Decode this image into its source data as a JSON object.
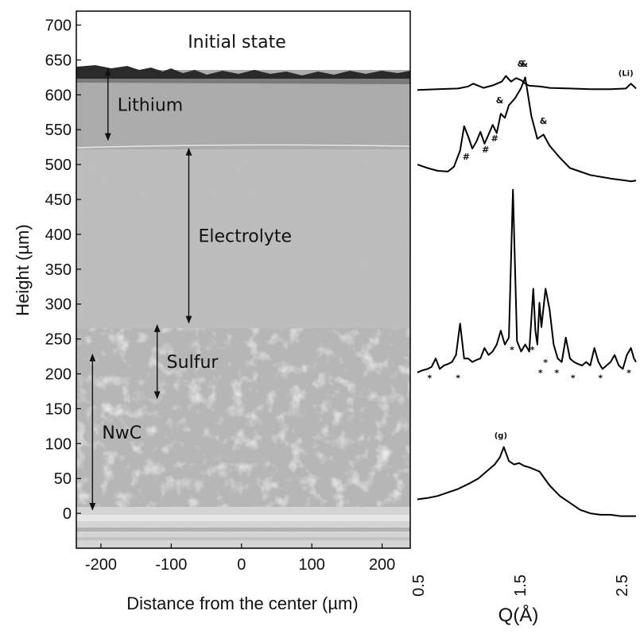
{
  "chart_data": [
    {
      "type": "image",
      "xlabel": "Distance from the center (µm)",
      "ylabel": "Height (µm)",
      "xlim": [
        -235,
        240
      ],
      "ylim": [
        -50,
        720
      ],
      "x_ticks": [
        "-200",
        "-100",
        "0",
        "100",
        "200"
      ],
      "x_tick_values": [
        -200,
        -100,
        0,
        100,
        200
      ],
      "y_ticks": [
        "700",
        "650",
        "600",
        "550",
        "500",
        "450",
        "400",
        "350",
        "300",
        "250",
        "200",
        "150",
        "100",
        "50",
        "0"
      ],
      "y_tick_values": [
        700,
        650,
        600,
        550,
        500,
        450,
        400,
        350,
        300,
        250,
        200,
        150,
        100,
        50,
        0
      ],
      "title_annotation": "Initial state",
      "layers": [
        {
          "label": "Lithium",
          "x": -190,
          "from": 637,
          "to": 535
        },
        {
          "label": "Electrolyte",
          "x": -75,
          "from": 523,
          "to": 273
        },
        {
          "label": "Sulfur",
          "x": -120,
          "from": 270,
          "to": 165
        },
        {
          "label": "NwC",
          "x": -212,
          "from": 228,
          "to": 5
        }
      ]
    },
    {
      "type": "line",
      "xlabel": "Q(Å)",
      "xlim": [
        0.5,
        2.65
      ],
      "x_ticks": [
        "0.5",
        "1.5",
        "2.5"
      ],
      "x_tick_values": [
        0.5,
        1.5,
        2.5
      ],
      "series": [
        {
          "name": "(Li)",
          "baseline_height": 607,
          "x": [
            0.5,
            0.7,
            0.9,
            1.0,
            1.05,
            1.15,
            1.25,
            1.33,
            1.37,
            1.42,
            1.47,
            1.52,
            1.56,
            1.6,
            1.7,
            1.8,
            2.0,
            2.2,
            2.4,
            2.55,
            2.6,
            2.63,
            2.65
          ],
          "offset": [
            0,
            1,
            2,
            5,
            9,
            3,
            7,
            12,
            20,
            12,
            17,
            14,
            9,
            6,
            5,
            3,
            2,
            1,
            1,
            2,
            9,
            5,
            2
          ],
          "annotations": [
            {
              "text": "&",
              "x": 1.52,
              "offset": 33
            },
            {
              "text": "(Li)",
              "x": 2.55,
              "offset": 20
            }
          ]
        },
        {
          "name": "electrolyte",
          "baseline_height": 475,
          "x": [
            0.5,
            0.6,
            0.7,
            0.8,
            0.86,
            0.92,
            0.96,
            1.0,
            1.04,
            1.08,
            1.12,
            1.16,
            1.2,
            1.24,
            1.28,
            1.32,
            1.36,
            1.4,
            1.46,
            1.52,
            1.56,
            1.62,
            1.68,
            1.74,
            1.8,
            1.9,
            2.0,
            2.2,
            2.4,
            2.55,
            2.6,
            2.65
          ],
          "offset": [
            25,
            20,
            16,
            15,
            22,
            45,
            80,
            65,
            48,
            58,
            72,
            55,
            68,
            82,
            70,
            98,
            92,
            110,
            120,
            135,
            150,
            95,
            62,
            68,
            52,
            35,
            20,
            10,
            5,
            2,
            1,
            2
          ],
          "annotations": [
            {
              "text": "#",
              "x": 0.98,
              "offset": 32
            },
            {
              "text": "#",
              "x": 1.17,
              "offset": 42
            },
            {
              "text": "#",
              "x": 1.26,
              "offset": 58
            },
            {
              "text": "&",
              "x": 1.31,
              "offset": 113
            },
            {
              "text": "&",
              "x": 1.55,
              "offset": 165
            },
            {
              "text": "&",
              "x": 1.74,
              "offset": 83
            }
          ]
        },
        {
          "name": "sulfur",
          "baseline_height": 202,
          "x": [
            0.5,
            0.55,
            0.6,
            0.64,
            0.68,
            0.72,
            0.76,
            0.8,
            0.84,
            0.88,
            0.92,
            0.96,
            1.0,
            1.04,
            1.08,
            1.12,
            1.16,
            1.2,
            1.24,
            1.28,
            1.32,
            1.36,
            1.4,
            1.44,
            1.48,
            1.52,
            1.56,
            1.6,
            1.64,
            1.66,
            1.68,
            1.7,
            1.72,
            1.76,
            1.8,
            1.84,
            1.88,
            1.92,
            1.96,
            2.0,
            2.04,
            2.08,
            2.12,
            2.16,
            2.2,
            2.24,
            2.28,
            2.32,
            2.36,
            2.4,
            2.44,
            2.48,
            2.52,
            2.56,
            2.6,
            2.63,
            2.65
          ],
          "offset": [
            0,
            3,
            5,
            8,
            20,
            5,
            10,
            12,
            15,
            25,
            70,
            20,
            20,
            15,
            18,
            20,
            35,
            25,
            30,
            40,
            60,
            40,
            50,
            262,
            45,
            30,
            40,
            30,
            120,
            60,
            40,
            100,
            65,
            120,
            90,
            40,
            20,
            15,
            50,
            20,
            15,
            12,
            10,
            15,
            10,
            35,
            15,
            5,
            10,
            15,
            25,
            10,
            5,
            25,
            35,
            20,
            15
          ],
          "annotations": [
            {
              "text": "*",
              "x": 0.62,
              "offset": -12
            },
            {
              "text": "*",
              "x": 0.9,
              "offset": -12
            },
            {
              "text": "*",
              "x": 1.43,
              "offset": 28
            },
            {
              "text": "*",
              "x": 1.63,
              "offset": 28
            },
            {
              "text": "*",
              "x": 1.71,
              "offset": -5
            },
            {
              "text": "*",
              "x": 1.76,
              "offset": 10
            },
            {
              "text": "*",
              "x": 1.87,
              "offset": -5
            },
            {
              "text": "*",
              "x": 2.03,
              "offset": -12
            },
            {
              "text": "*",
              "x": 2.3,
              "offset": -12
            },
            {
              "text": "*",
              "x": 2.58,
              "offset": -5
            }
          ]
        },
        {
          "name": "(g)",
          "baseline_height": 20,
          "x": [
            0.5,
            0.6,
            0.7,
            0.8,
            0.9,
            1.0,
            1.1,
            1.18,
            1.26,
            1.31,
            1.35,
            1.4,
            1.45,
            1.5,
            1.55,
            1.6,
            1.7,
            1.8,
            1.9,
            2.0,
            2.1,
            2.2,
            2.3,
            2.4,
            2.5,
            2.6,
            2.65
          ],
          "offset": [
            0,
            2,
            5,
            10,
            15,
            22,
            30,
            40,
            50,
            60,
            75,
            55,
            50,
            52,
            48,
            46,
            40,
            20,
            5,
            -5,
            -15,
            -20,
            -22,
            -22,
            -24,
            -24,
            -24
          ],
          "annotations": [
            {
              "text": "(g)",
              "x": 1.32,
              "offset": 88
            }
          ]
        }
      ]
    }
  ]
}
